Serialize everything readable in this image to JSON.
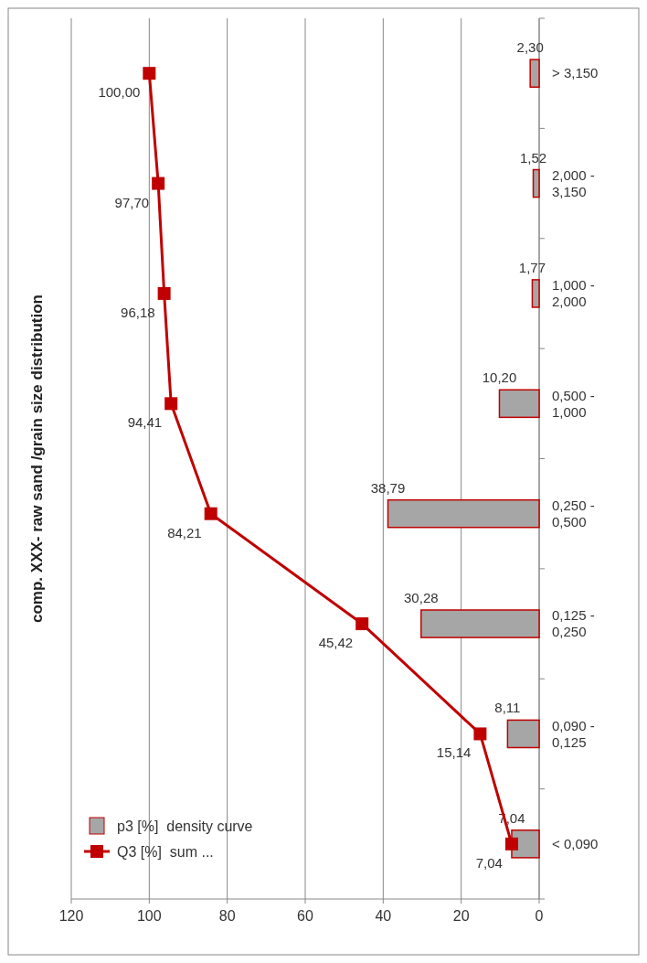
{
  "chart_data": {
    "type": "bar",
    "orientation": "horizontal",
    "title": "comp. XXX- raw sand /grain size distribution",
    "categories": [
      "> 3,150",
      "2,000 - 3,150",
      "1,000 - 2,000",
      "0,500 - 1,000",
      "0,250 - 0,500",
      "0,125 - 0,250",
      "0,090 - 0,125",
      "< 0,090"
    ],
    "series": [
      {
        "name": "p3 [%]  density curve",
        "color": "#a6a6a6",
        "values": [
          2.3,
          1.52,
          1.77,
          10.2,
          38.79,
          30.28,
          8.11,
          7.04
        ],
        "value_labels": [
          "2,30",
          "1,52",
          "1,77",
          "10,20",
          "38,79",
          "30,28",
          "8,11",
          "7,04"
        ]
      },
      {
        "name": "Q3 [%]  sum ...",
        "type": "line",
        "color": "#c00000",
        "marker": "square",
        "values": [
          100.0,
          97.7,
          96.18,
          94.41,
          84.21,
          45.42,
          15.14,
          7.04
        ],
        "value_labels": [
          "100,00",
          "97,70",
          "96,18",
          "94,41",
          "84,21",
          "45,42",
          "15,14",
          "7,04"
        ]
      }
    ],
    "xlim": [
      120,
      0
    ],
    "xticks": [
      120,
      100,
      80,
      60,
      40,
      20,
      0
    ],
    "grid": "x",
    "legend": "bottom left"
  }
}
